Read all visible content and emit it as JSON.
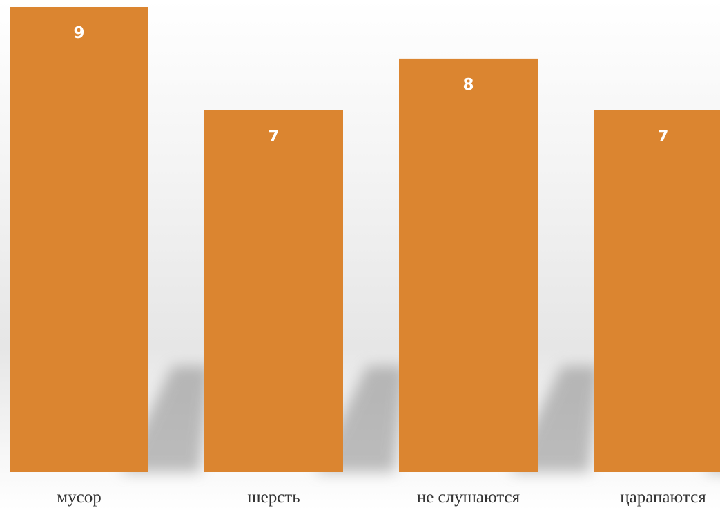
{
  "chart_data": {
    "type": "bar",
    "title": "",
    "xlabel": "",
    "ylabel": "",
    "categories": [
      "мусор",
      "шерсть",
      "не слушаются",
      "царапаются"
    ],
    "values": [
      9,
      7,
      8,
      7
    ],
    "ylim": [
      0,
      9
    ],
    "grid": false,
    "legend": "none",
    "data_labels": true,
    "bar_color": "#DB8530",
    "label_color": "#FFFFFF",
    "background_color": "#F2F2F2"
  }
}
